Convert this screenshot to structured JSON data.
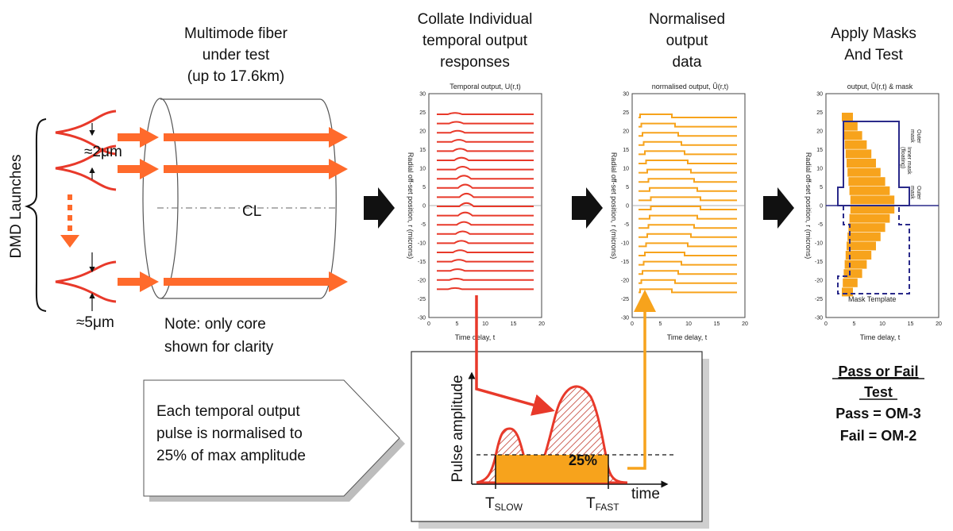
{
  "titles": {
    "fiber": [
      "Multimode fiber",
      "under test",
      "(up to 17.6km)"
    ],
    "collate": [
      "Collate Individual",
      "temporal output",
      "responses"
    ],
    "normalised": [
      "Normalised",
      "output",
      "data"
    ],
    "masks": [
      "Apply Masks",
      "And Test"
    ]
  },
  "launch": {
    "label": "DMD Launches",
    "spot_small": "≈2μm",
    "spot_large": "≈5μm",
    "centerline": "CL"
  },
  "note": [
    "Note: only core",
    "shown for clarity"
  ],
  "plot1": {
    "title": "Temporal output, U(r,t)",
    "xlabel": "Time delay, t",
    "ylabel": "Radial off-set position, r (microns)",
    "yticks": [
      "30",
      "25",
      "20",
      "15",
      "10",
      "5",
      "0",
      "-5",
      "-10",
      "-15",
      "-20",
      "-25",
      "-30"
    ],
    "xticks": [
      "0",
      "5",
      "10",
      "15",
      "20"
    ]
  },
  "plot2": {
    "title": "normalised output, Û(r,t)",
    "xlabel": "Time delay, t",
    "ylabel": "Radial off-set position, r (microns)",
    "yticks": [
      "30",
      "25",
      "20",
      "15",
      "10",
      "5",
      "0",
      "-5",
      "-10",
      "-15",
      "-20",
      "-25",
      "-30"
    ],
    "xticks": [
      "0",
      "5",
      "10",
      "15",
      "20"
    ]
  },
  "plot3": {
    "title": "output, Û(r,t) & mask",
    "xlabel": "Time delay, t",
    "ylabel": "Radial off-set position, r (microns)",
    "yticks": [
      "30",
      "25",
      "20",
      "15",
      "10",
      "5",
      "0",
      "-5",
      "-10",
      "-15",
      "-20",
      "-25",
      "-30"
    ],
    "xticks": [
      "0",
      "5",
      "10",
      "15",
      "20"
    ],
    "mask_outer_top": [
      "Outer",
      "mask"
    ],
    "mask_inner": [
      "Inner mask",
      "(floating)"
    ],
    "mask_outer_mid": [
      "Outer",
      "mask"
    ],
    "mask_template": "Mask Template"
  },
  "pulse": {
    "ylabel": "Pulse amplitude",
    "xlabel": "time",
    "level": "25%",
    "t_slow": "T",
    "t_slow_sub": "SLOW",
    "t_fast": "T",
    "t_fast_sub": "FAST"
  },
  "callout": [
    "Each temporal output",
    "pulse is normalised to",
    "25% of max amplitude"
  ],
  "result": {
    "heading_1": "Pass or Fail",
    "heading_2": "Test",
    "pass": "Pass = OM-3",
    "fail": "Fail = OM-2"
  },
  "colors": {
    "red": "#e8392a",
    "orange_arrow": "#ff6a2b",
    "amber": "#f7a31c",
    "mask_blue": "#2a2a8a"
  }
}
